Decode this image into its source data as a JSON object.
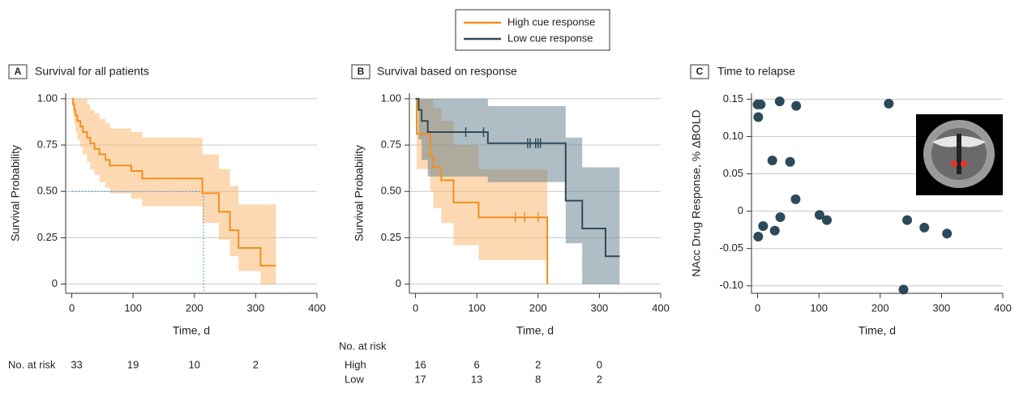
{
  "chart_data": [
    {
      "type": "survival",
      "panel": "A",
      "title": "Survival for all patients",
      "xlabel": "Time, d",
      "ylabel": "Survival Probability",
      "xlim": [
        -10,
        400
      ],
      "ylim": [
        -0.05,
        1.03
      ],
      "xticks": [
        0,
        100,
        200,
        300,
        400
      ],
      "yticks": [
        0,
        0.25,
        {
          "value": 0.5,
          "label": "0.50"
        },
        0.75,
        {
          "value": 1,
          "label": "1.00"
        }
      ],
      "grid": true,
      "series": [
        {
          "color": "#f0901e",
          "ci_color": "#f9b468",
          "x": [
            0,
            2,
            4,
            6,
            9,
            14,
            18,
            25,
            30,
            37,
            45,
            55,
            62,
            97,
            115,
            213,
            240,
            258,
            272,
            308,
            333
          ],
          "values": [
            1.0,
            0.97,
            0.94,
            0.91,
            0.88,
            0.85,
            0.82,
            0.79,
            0.76,
            0.73,
            0.7,
            0.67,
            0.64,
            0.61,
            0.57,
            0.49,
            0.39,
            0.29,
            0.195,
            0.1,
            0.1
          ],
          "ci_upper": [
            1,
            1,
            1,
            1,
            1,
            1,
            1,
            0.97,
            0.94,
            0.92,
            0.89,
            0.87,
            0.84,
            0.82,
            0.79,
            0.7,
            0.62,
            0.53,
            0.43,
            0.43,
            0.43
          ],
          "ci_lower": [
            1.0,
            0.91,
            0.86,
            0.82,
            0.78,
            0.74,
            0.7,
            0.66,
            0.62,
            0.59,
            0.55,
            0.52,
            0.49,
            0.46,
            0.42,
            0.33,
            0.24,
            0.15,
            0.07,
            0,
            0
          ],
          "censored_x": []
        }
      ],
      "median": {
        "x": 215,
        "y": 0.5,
        "color": "#3a9bd5"
      },
      "at_risk": {
        "label": "No. at risk",
        "rows": [
          {
            "values": [
              33,
              19,
              10,
              2
            ]
          }
        ]
      }
    },
    {
      "type": "survival",
      "panel": "B",
      "title": "Survival based on response",
      "xlabel": "Time, d",
      "ylabel": "Survival Probability",
      "xlim": [
        -10,
        400
      ],
      "ylim": [
        -0.05,
        1.03
      ],
      "xticks": [
        0,
        100,
        200,
        300,
        400
      ],
      "yticks": [
        0,
        0.25,
        {
          "value": 0.5,
          "label": "0.50"
        },
        0.75,
        {
          "value": 1,
          "label": "1.00"
        }
      ],
      "grid": true,
      "series": [
        {
          "name": "High cue response",
          "color": "#f0901e",
          "ci_color": "#f9b468",
          "x": [
            0,
            2,
            24,
            29,
            42,
            62,
            103,
            215
          ],
          "values": [
            1.0,
            0.81,
            0.69,
            0.63,
            0.56,
            0.44,
            0.36,
            0
          ],
          "ci_upper": [
            1,
            1,
            1,
            0.95,
            0.88,
            0.75,
            0.62,
            0.62
          ],
          "ci_lower": [
            1,
            0.62,
            0.5,
            0.41,
            0.33,
            0.21,
            0.13,
            0
          ],
          "censored_x": [
            163,
            178,
            200
          ]
        },
        {
          "name": "Low cue response",
          "color": "#2e4b5b",
          "ci_color": "#5f7b8a",
          "x": [
            0,
            5,
            10,
            20,
            118,
            245,
            272,
            310,
            333
          ],
          "values": [
            1.0,
            0.94,
            0.88,
            0.82,
            0.76,
            0.45,
            0.3,
            0.15,
            0.15
          ],
          "ci_upper": [
            1,
            1,
            1,
            1,
            0.96,
            0.79,
            0.63,
            0.63,
            0.63
          ],
          "ci_lower": [
            1,
            0.78,
            0.67,
            0.58,
            0.55,
            0.22,
            0,
            0,
            0
          ],
          "censored_x": [
            82,
            111,
            183,
            187,
            196,
            200,
            204
          ]
        }
      ],
      "at_risk": {
        "label": "No. at risk",
        "rows": [
          {
            "name": "High",
            "values": [
              16,
              6,
              2,
              0
            ]
          },
          {
            "name": "Low",
            "values": [
              17,
              13,
              8,
              2
            ]
          }
        ]
      }
    },
    {
      "type": "scatter",
      "panel": "C",
      "title": "Time to relapse",
      "xlabel": "Time, d",
      "ylabel": "NAcc Drug Response, % ΔBOLD",
      "xlim": [
        -10,
        400
      ],
      "ylim": [
        -0.11,
        0.158
      ],
      "xticks": [
        0,
        100,
        200,
        300,
        400
      ],
      "yticks": [
        {
          "value": -0.1,
          "label": "-0.10"
        },
        -0.05,
        0,
        0.05,
        {
          "value": 0.1,
          "label": "0.10"
        },
        0.15
      ],
      "grid": true,
      "series": [
        {
          "color": "#2c4a5a",
          "x": [
            0,
            5,
            1,
            36,
            63,
            214,
            24,
            53,
            62,
            1,
            9,
            28,
            37,
            101,
            113,
            244,
            272,
            309,
            238
          ],
          "values": [
            0.143,
            0.143,
            0.126,
            0.147,
            0.141,
            0.144,
            0.068,
            0.066,
            0.016,
            -0.034,
            -0.02,
            -0.026,
            -0.008,
            -0.005,
            -0.012,
            -0.012,
            -0.022,
            -0.03,
            -0.105
          ]
        }
      ]
    }
  ]
}
